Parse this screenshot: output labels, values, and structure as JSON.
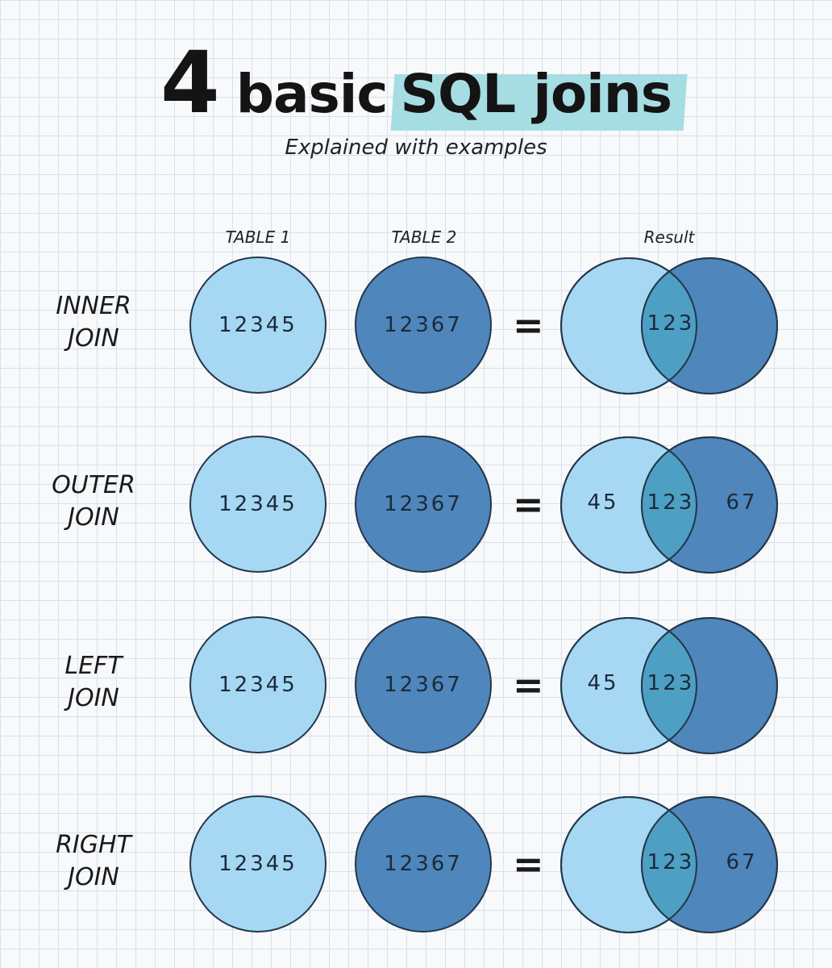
{
  "title": {
    "number": "4",
    "plain": "basic",
    "highlight": "SQL joins"
  },
  "subtitle": "Explained with examples",
  "columns": {
    "table1": "TABLE 1",
    "table2": "TABLE 2",
    "result": "Result"
  },
  "equals_sign": "=",
  "colors": {
    "table1_fill": "#a6d8f3",
    "table2_fill": "#4f86bb",
    "overlap_fill": "#4e9fc4",
    "highlight": "#a6dde3"
  },
  "rows": [
    {
      "label_line1": "INNER",
      "label_line2": "JOIN",
      "table1": "12345",
      "table2": "12367",
      "result_left": "",
      "result_mid": "123",
      "result_right": "",
      "left_fill": "light",
      "right_fill": "dark"
    },
    {
      "label_line1": "OUTER",
      "label_line2": "JOIN",
      "table1": "12345",
      "table2": "12367",
      "result_left": "45",
      "result_mid": "123",
      "result_right": "67",
      "left_fill": "light",
      "right_fill": "dark"
    },
    {
      "label_line1": "LEFT",
      "label_line2": "JOIN",
      "table1": "12345",
      "table2": "12367",
      "result_left": "45",
      "result_mid": "123",
      "result_right": "",
      "left_fill": "light",
      "right_fill": "dark"
    },
    {
      "label_line1": "RIGHT",
      "label_line2": "JOIN",
      "table1": "12345",
      "table2": "12367",
      "result_left": "",
      "result_mid": "123",
      "result_right": "67",
      "left_fill": "light",
      "right_fill": "dark"
    }
  ]
}
